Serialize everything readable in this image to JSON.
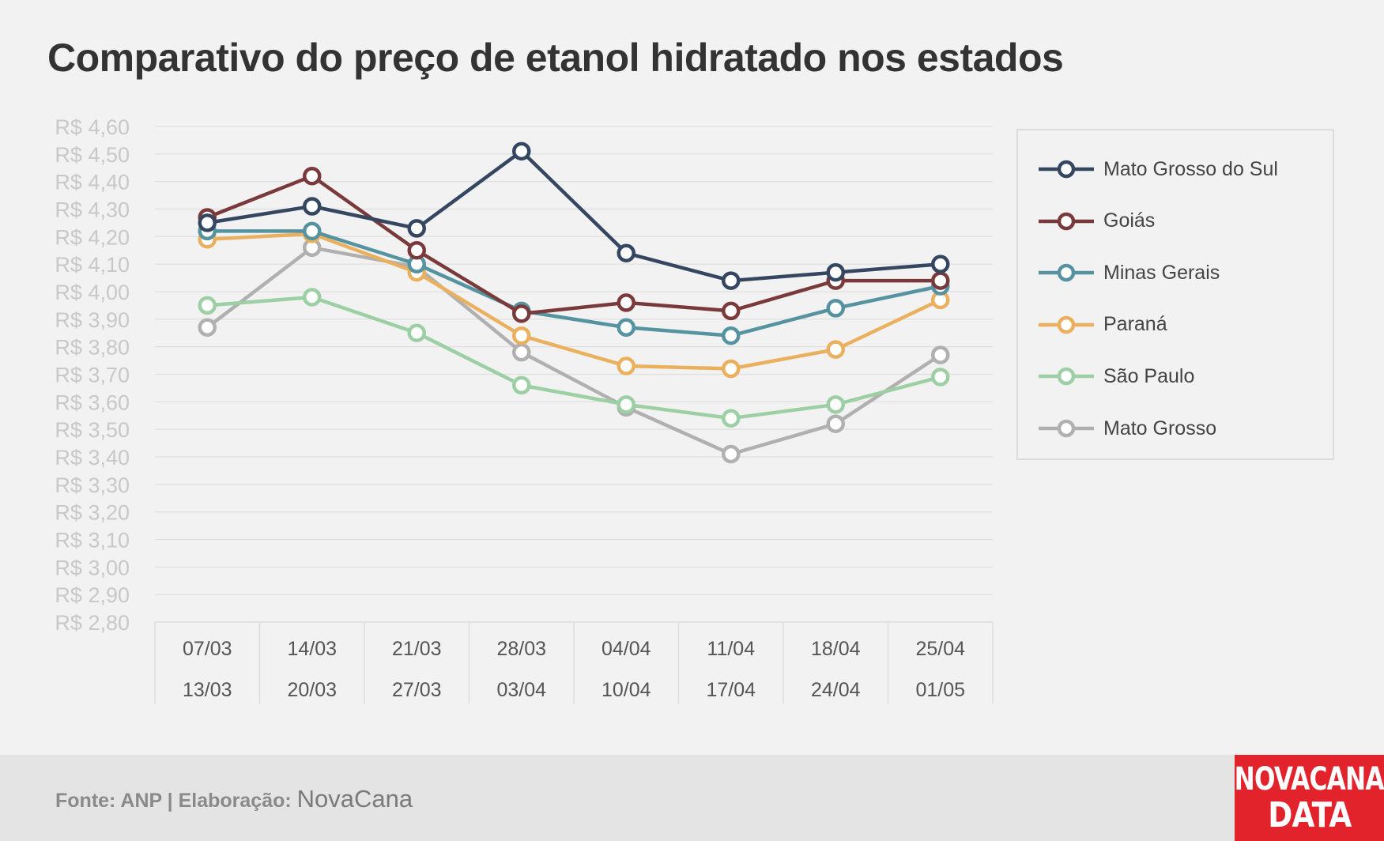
{
  "title": "Comparativo do preço de etanol hidratado nos estados",
  "footer": {
    "source_text": "Fonte: ANP | Elaboração:",
    "brand_text": "NovaCana",
    "logo_line1": "NOVACANA",
    "logo_line2": "DATA"
  },
  "chart_data": {
    "type": "line",
    "title": "Comparativo do preço de etanol hidratado nos estados",
    "xlabel": "",
    "ylabel": "",
    "ylim": [
      2.8,
      4.6
    ],
    "ytick_step": 0.1,
    "ytick_labels": [
      "R$ 4,60",
      "R$ 4,50",
      "R$ 4,40",
      "R$ 4,30",
      "R$ 4,20",
      "R$ 4,10",
      "R$ 4,00",
      "R$ 3,90",
      "R$ 3,80",
      "R$ 3,70",
      "R$ 3,60",
      "R$ 3,50",
      "R$ 3,40",
      "R$ 3,30",
      "R$ 3,20",
      "R$ 3,10",
      "R$ 3,00",
      "R$ 2,90",
      "R$ 2,80"
    ],
    "categories": [
      {
        "start": "07/03",
        "end": "13/03"
      },
      {
        "start": "14/03",
        "end": "20/03"
      },
      {
        "start": "21/03",
        "end": "27/03"
      },
      {
        "start": "28/03",
        "end": "03/04"
      },
      {
        "start": "04/04",
        "end": "10/04"
      },
      {
        "start": "11/04",
        "end": "17/04"
      },
      {
        "start": "18/04",
        "end": "24/04"
      },
      {
        "start": "25/04",
        "end": "01/05"
      }
    ],
    "grid": true,
    "legend_position": "right",
    "series": [
      {
        "name": "Mato Grosso do Sul",
        "color": "#344660",
        "values": [
          4.25,
          4.31,
          4.23,
          4.51,
          4.14,
          4.04,
          4.07,
          4.1
        ]
      },
      {
        "name": "Goiás",
        "color": "#7a3a3c",
        "values": [
          4.27,
          4.42,
          4.15,
          3.92,
          3.96,
          3.93,
          4.04,
          4.04
        ]
      },
      {
        "name": "Minas Gerais",
        "color": "#5693a0",
        "values": [
          4.22,
          4.22,
          4.1,
          3.93,
          3.87,
          3.84,
          3.94,
          4.02
        ]
      },
      {
        "name": "Paraná",
        "color": "#ebb05e",
        "values": [
          4.19,
          4.21,
          4.07,
          3.84,
          3.73,
          3.72,
          3.79,
          3.97
        ]
      },
      {
        "name": "São Paulo",
        "color": "#9ccfa3",
        "values": [
          3.95,
          3.98,
          3.85,
          3.66,
          3.59,
          3.54,
          3.59,
          3.69
        ]
      },
      {
        "name": "Mato Grosso",
        "color": "#b0b0b0",
        "values": [
          3.87,
          4.16,
          4.09,
          3.78,
          3.58,
          3.41,
          3.52,
          3.77
        ]
      }
    ]
  }
}
